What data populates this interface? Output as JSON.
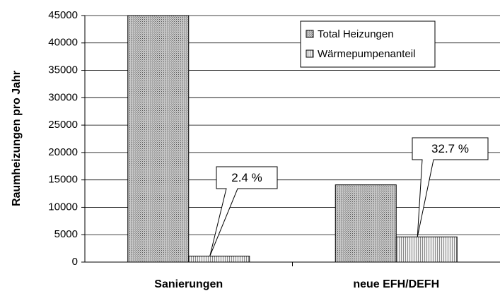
{
  "chart_data": {
    "type": "bar",
    "y_label": "Raumheizungen pro Jahr",
    "categories": [
      "Sanierungen",
      "neue EFH/DEFH"
    ],
    "series": [
      {
        "name": "Total Heizungen",
        "color": "#a0a0a0",
        "values": [
          45000,
          14100
        ]
      },
      {
        "name": "Wärmepumpenanteil",
        "color": "#d8d8d8",
        "values": [
          1100,
          4600
        ]
      }
    ],
    "annotations": [
      "2.4 %",
      "32.7 %"
    ],
    "ylim": [
      0,
      45000
    ],
    "yticks": [
      0,
      5000,
      10000,
      15000,
      20000,
      25000,
      30000,
      35000,
      40000,
      45000
    ],
    "grid": true,
    "legend": "upper right"
  }
}
